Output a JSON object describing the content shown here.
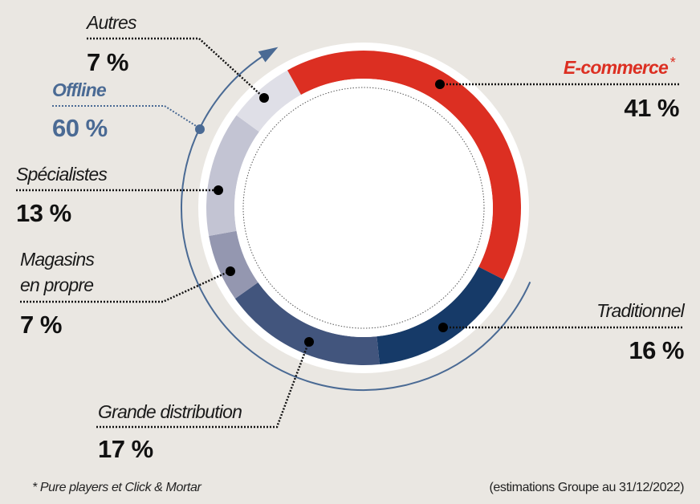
{
  "chart_data": {
    "type": "pie",
    "variant": "donut",
    "categories": [
      "E-commerce",
      "Traditionnel",
      "Grande distribution",
      "Magasins en propre",
      "Spécialistes",
      "Autres"
    ],
    "values": [
      41,
      16,
      17,
      7,
      13,
      7
    ],
    "unit": "%",
    "colors": [
      "#dc2f22",
      "#163a68",
      "#42557d",
      "#9497b0",
      "#c3c4d3",
      "#dfdfe7"
    ],
    "labels": {
      "ecommerce": {
        "name": "E-commerce",
        "mark": "*",
        "value": "41 %"
      },
      "traditionnel": {
        "name": "Traditionnel",
        "value": "16 %"
      },
      "grande": {
        "name": "Grande distribution",
        "value": "17 %"
      },
      "magasins": {
        "name_line1": "Magasins",
        "name_line2": "en propre",
        "value": "7 %"
      },
      "specialistes": {
        "name": "Spécialistes",
        "value": "13 %"
      },
      "autres": {
        "name": "Autres",
        "value": "7 %"
      }
    },
    "group": {
      "name": "Offline",
      "value": "60 %",
      "color": "#4a6a94"
    },
    "footnote": "* Pure players et Click & Mortar",
    "source": "(estimations Groupe au 31/12/2022)"
  }
}
